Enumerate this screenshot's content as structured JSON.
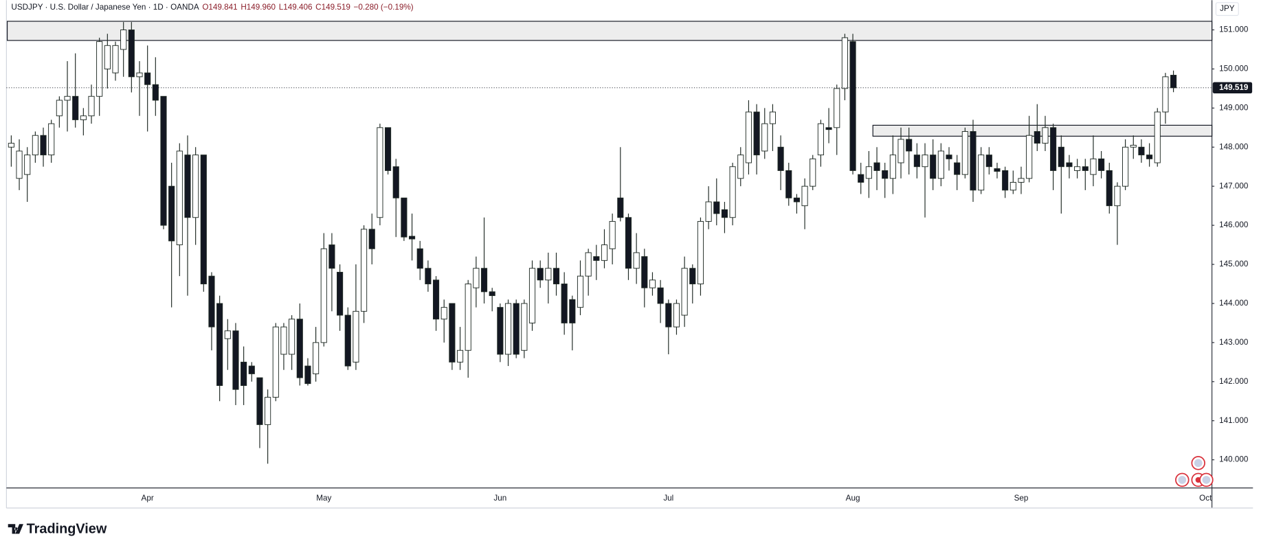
{
  "header": {
    "symbol": "USDJPY · U.S. Dollar / Japanese Yen · 1D · OANDA",
    "ohlc": [
      "O149.841",
      "H149.960",
      "L149.406",
      "C149.519"
    ],
    "change": "−0.280 (−0.19%)"
  },
  "currency": "JPY",
  "brand": "TradingView",
  "chart_data": {
    "type": "candlestick",
    "categories": [
      null,
      null,
      null,
      null,
      null,
      null,
      null,
      null,
      null,
      null,
      null,
      null,
      null,
      null,
      null,
      null,
      null,
      "Apr",
      null,
      null,
      null,
      null,
      null,
      null,
      null,
      null,
      null,
      null,
      null,
      null,
      null,
      null,
      null,
      null,
      null,
      null,
      null,
      null,
      null,
      "May",
      null,
      null,
      null,
      null,
      null,
      null,
      null,
      null,
      null,
      null,
      null,
      null,
      null,
      null,
      null,
      null,
      null,
      null,
      null,
      null,
      null,
      "Jun",
      null,
      null,
      null,
      null,
      null,
      null,
      null,
      null,
      null,
      null,
      null,
      null,
      null,
      null,
      null,
      null,
      null,
      null,
      null,
      null,
      "Jul",
      null,
      null,
      null,
      null,
      null,
      null,
      null,
      null,
      null,
      null,
      null,
      null,
      null,
      null,
      null,
      null,
      null,
      null,
      null,
      null,
      null,
      null,
      "Aug",
      null,
      null,
      null,
      null,
      null,
      null,
      null,
      null,
      null,
      null,
      null,
      null,
      null,
      null,
      null,
      null,
      null,
      null,
      null,
      null,
      "Sep",
      null,
      null,
      null,
      null,
      null,
      null,
      null,
      null,
      null,
      null,
      null,
      null,
      null,
      null,
      null,
      null,
      null,
      null,
      null,
      null,
      null,
      null,
      "Oct"
    ],
    "open": [
      148.0,
      147.2,
      147.3,
      147.8,
      148.3,
      147.8,
      148.8,
      149.2,
      149.3,
      148.7,
      148.8,
      149.3,
      150.0,
      149.9,
      150.5,
      151.0,
      149.8,
      149.9,
      149.6,
      149.3,
      147.0,
      145.5,
      147.8,
      146.2,
      147.8,
      144.7,
      144.0,
      143.1,
      143.3,
      142.5,
      142.4,
      142.1,
      140.9,
      141.6,
      142.7,
      142.7,
      143.6,
      142.4,
      142.2,
      143.0,
      145.5,
      144.8,
      143.7,
      142.5,
      143.8,
      145.9,
      146.2,
      148.5,
      147.5,
      146.7,
      145.72,
      145.4,
      144.9,
      144.6,
      143.6,
      144.0,
      142.5,
      142.8,
      144.4,
      144.9,
      144.3,
      143.9,
      142.7,
      144.0,
      142.8,
      143.5,
      144.9,
      144.6,
      144.9,
      144.5,
      144.1,
      143.9,
      144.7,
      145.2,
      145.1,
      145.4,
      146.7,
      146.2,
      144.9,
      145.2,
      144.4,
      144.4,
      144.0,
      143.4,
      143.7,
      144.9,
      144.5,
      146.1,
      146.6,
      146.4,
      146.2,
      147.2,
      147.6,
      148.9,
      147.9,
      148.6,
      148.0,
      147.4,
      146.7,
      146.5,
      147.0,
      147.8,
      148.5,
      148.5,
      149.5,
      150.7,
      147.3,
      147.2,
      147.6,
      147.4,
      147.2,
      147.6,
      148.2,
      147.8,
      147.5,
      147.8,
      147.2,
      147.8,
      147.6,
      147.3,
      148.4,
      146.9,
      147.8,
      147.45,
      147.4,
      146.9,
      147.1,
      147.2,
      148.4,
      148.1,
      148.5,
      148.0,
      147.6,
      147.4,
      147.5,
      147.3,
      147.7,
      147.4,
      146.5,
      147.0,
      148.0,
      148.0,
      147.8,
      147.6,
      148.9,
      149.841,
      null,
      null,
      null,
      null
    ],
    "high": [
      148.3,
      148.2,
      148.0,
      148.4,
      148.5,
      148.7,
      149.3,
      150.2,
      150.4,
      149.0,
      149.6,
      150.8,
      150.9,
      150.7,
      151.2,
      151.2,
      150.2,
      150.6,
      150.3,
      149.3,
      147.6,
      148.1,
      148.3,
      148.0,
      147.8,
      144.8,
      144.2,
      143.6,
      143.5,
      142.9,
      142.5,
      142.1,
      141.8,
      143.5,
      143.5,
      143.7,
      144.0,
      142.6,
      143.4,
      145.8,
      145.8,
      145.0,
      143.9,
      145.0,
      146.0,
      146.3,
      148.6,
      148.5,
      147.7,
      146.7,
      146.3,
      145.6,
      145.1,
      144.7,
      144.1,
      144.0,
      143.4,
      144.6,
      145.2,
      146.2,
      144.4,
      144.0,
      144.1,
      144.1,
      144.1,
      145.1,
      145.1,
      145.3,
      145.3,
      144.8,
      144.2,
      145.1,
      145.4,
      145.5,
      145.9,
      146.3,
      148.0,
      146.3,
      145.8,
      145.4,
      144.8,
      144.6,
      144.1,
      144.1,
      145.2,
      145.0,
      146.2,
      147.0,
      147.2,
      146.6,
      147.6,
      148.0,
      149.2,
      149.1,
      149.0,
      149.1,
      148.3,
      147.6,
      146.8,
      147.2,
      147.8,
      148.7,
      149.0,
      149.6,
      150.9,
      150.9,
      147.6,
      147.9,
      148.0,
      147.6,
      148.3,
      148.5,
      148.5,
      148.1,
      148.1,
      148.2,
      148.1,
      148.0,
      147.8,
      148.5,
      148.7,
      148.0,
      148.0,
      147.6,
      147.5,
      147.4,
      147.5,
      148.8,
      149.1,
      148.8,
      148.6,
      148.3,
      147.8,
      147.7,
      147.7,
      148.3,
      147.9,
      147.6,
      147.1,
      148.2,
      148.3,
      148.2,
      148.1,
      149.0,
      149.9,
      149.96,
      null,
      null,
      null,
      null
    ],
    "low": [
      147.5,
      146.9,
      146.6,
      147.6,
      147.5,
      147.6,
      148.5,
      148.4,
      148.5,
      148.3,
      148.6,
      148.8,
      149.5,
      149.7,
      149.8,
      149.4,
      148.8,
      148.4,
      148.8,
      145.9,
      143.9,
      144.7,
      144.2,
      145.5,
      144.3,
      142.8,
      141.5,
      142.3,
      141.4,
      141.4,
      142.0,
      140.3,
      139.9,
      141.5,
      142.3,
      142.3,
      141.9,
      141.9,
      142.0,
      142.9,
      143.8,
      143.3,
      142.3,
      142.3,
      143.5,
      145.0,
      146.0,
      147.3,
      145.7,
      145.6,
      145.1,
      144.6,
      144.3,
      143.3,
      143.0,
      142.3,
      142.3,
      142.1,
      143.9,
      144.0,
      143.8,
      142.5,
      142.4,
      142.6,
      142.6,
      143.3,
      144.4,
      144.0,
      144.2,
      143.2,
      142.8,
      143.7,
      144.2,
      144.6,
      144.9,
      145.0,
      146.1,
      144.6,
      144.5,
      143.9,
      144.2,
      143.5,
      142.7,
      143.2,
      143.4,
      144.0,
      144.2,
      145.9,
      146.0,
      145.8,
      146.0,
      147.0,
      147.3,
      147.3,
      147.7,
      147.9,
      146.9,
      146.5,
      146.3,
      145.9,
      146.9,
      147.5,
      148.1,
      147.8,
      149.2,
      147.3,
      146.8,
      146.7,
      146.9,
      146.7,
      146.8,
      147.2,
      147.3,
      147.2,
      146.2,
      146.9,
      147.0,
      147.4,
      146.9,
      147.2,
      146.6,
      146.8,
      147.3,
      147.2,
      146.7,
      146.8,
      146.8,
      147.1,
      147.9,
      147.9,
      146.9,
      146.3,
      147.2,
      147.2,
      146.9,
      147.0,
      147.2,
      146.3,
      145.5,
      146.9,
      147.7,
      147.6,
      147.5,
      147.5,
      148.6,
      149.406,
      null,
      null,
      null,
      null
    ],
    "close": [
      148.1,
      147.9,
      147.8,
      148.3,
      147.8,
      148.6,
      149.2,
      149.3,
      148.7,
      148.8,
      149.3,
      150.7,
      150.6,
      150.6,
      151.0,
      149.8,
      149.9,
      149.6,
      149.2,
      146.0,
      145.6,
      147.9,
      146.2,
      147.8,
      144.5,
      143.4,
      141.9,
      143.3,
      141.8,
      141.9,
      142.2,
      140.9,
      141.6,
      143.4,
      143.4,
      143.6,
      142.1,
      141.95,
      143.0,
      145.4,
      144.9,
      143.7,
      142.4,
      143.8,
      145.9,
      145.4,
      148.5,
      147.4,
      146.7,
      145.7,
      145.65,
      144.9,
      144.5,
      143.6,
      143.9,
      142.5,
      142.8,
      144.5,
      144.9,
      144.3,
      144.2,
      142.7,
      144.0,
      142.7,
      144.0,
      144.9,
      144.6,
      144.9,
      144.5,
      143.5,
      143.5,
      144.7,
      145.3,
      145.1,
      145.5,
      146.1,
      146.2,
      144.9,
      145.3,
      144.4,
      144.6,
      144.0,
      143.4,
      144.0,
      144.9,
      144.5,
      146.1,
      146.6,
      146.3,
      146.2,
      147.5,
      147.8,
      148.9,
      147.8,
      148.6,
      148.9,
      147.4,
      146.7,
      146.6,
      147.0,
      147.7,
      148.6,
      148.45,
      149.5,
      150.8,
      147.4,
      147.1,
      147.5,
      147.4,
      147.2,
      147.8,
      148.2,
      147.9,
      147.5,
      147.8,
      147.2,
      147.9,
      147.7,
      147.3,
      148.4,
      146.9,
      147.8,
      147.5,
      147.38,
      146.9,
      147.1,
      147.2,
      148.3,
      148.1,
      148.5,
      147.4,
      147.5,
      147.5,
      147.5,
      147.4,
      147.7,
      147.4,
      146.5,
      147.0,
      148.0,
      148.05,
      147.8,
      147.7,
      148.9,
      149.8,
      149.519,
      null,
      null,
      null,
      null
    ],
    "ylim": [
      139.28,
      151.76
    ],
    "yticks": [
      {
        "value": 140,
        "label": "140.000"
      },
      {
        "value": 141,
        "label": "141.000"
      },
      {
        "value": 142,
        "label": "142.000"
      },
      {
        "value": 143,
        "label": "143.000"
      },
      {
        "value": 144,
        "label": "144.000"
      },
      {
        "value": 145,
        "label": "145.000"
      },
      {
        "value": 146,
        "label": "146.000"
      },
      {
        "value": 147,
        "label": "147.000"
      },
      {
        "value": 148,
        "label": "148.000"
      },
      {
        "value": 149,
        "label": "149.000"
      },
      {
        "value": 150,
        "label": "150.000"
      },
      {
        "value": 151,
        "label": "151.000"
      }
    ],
    "zones": [
      {
        "low": 150.73,
        "high": 151.22,
        "start_index": 0
      },
      {
        "low": 148.28,
        "high": 148.56,
        "start_index": 108
      }
    ],
    "grid": false,
    "last_price_line": true,
    "colors": {
      "up": "#ffffff",
      "down": "#131722",
      "border": "#1f2a24",
      "zone": "#e6e6e6",
      "last_price": "#131722"
    }
  }
}
